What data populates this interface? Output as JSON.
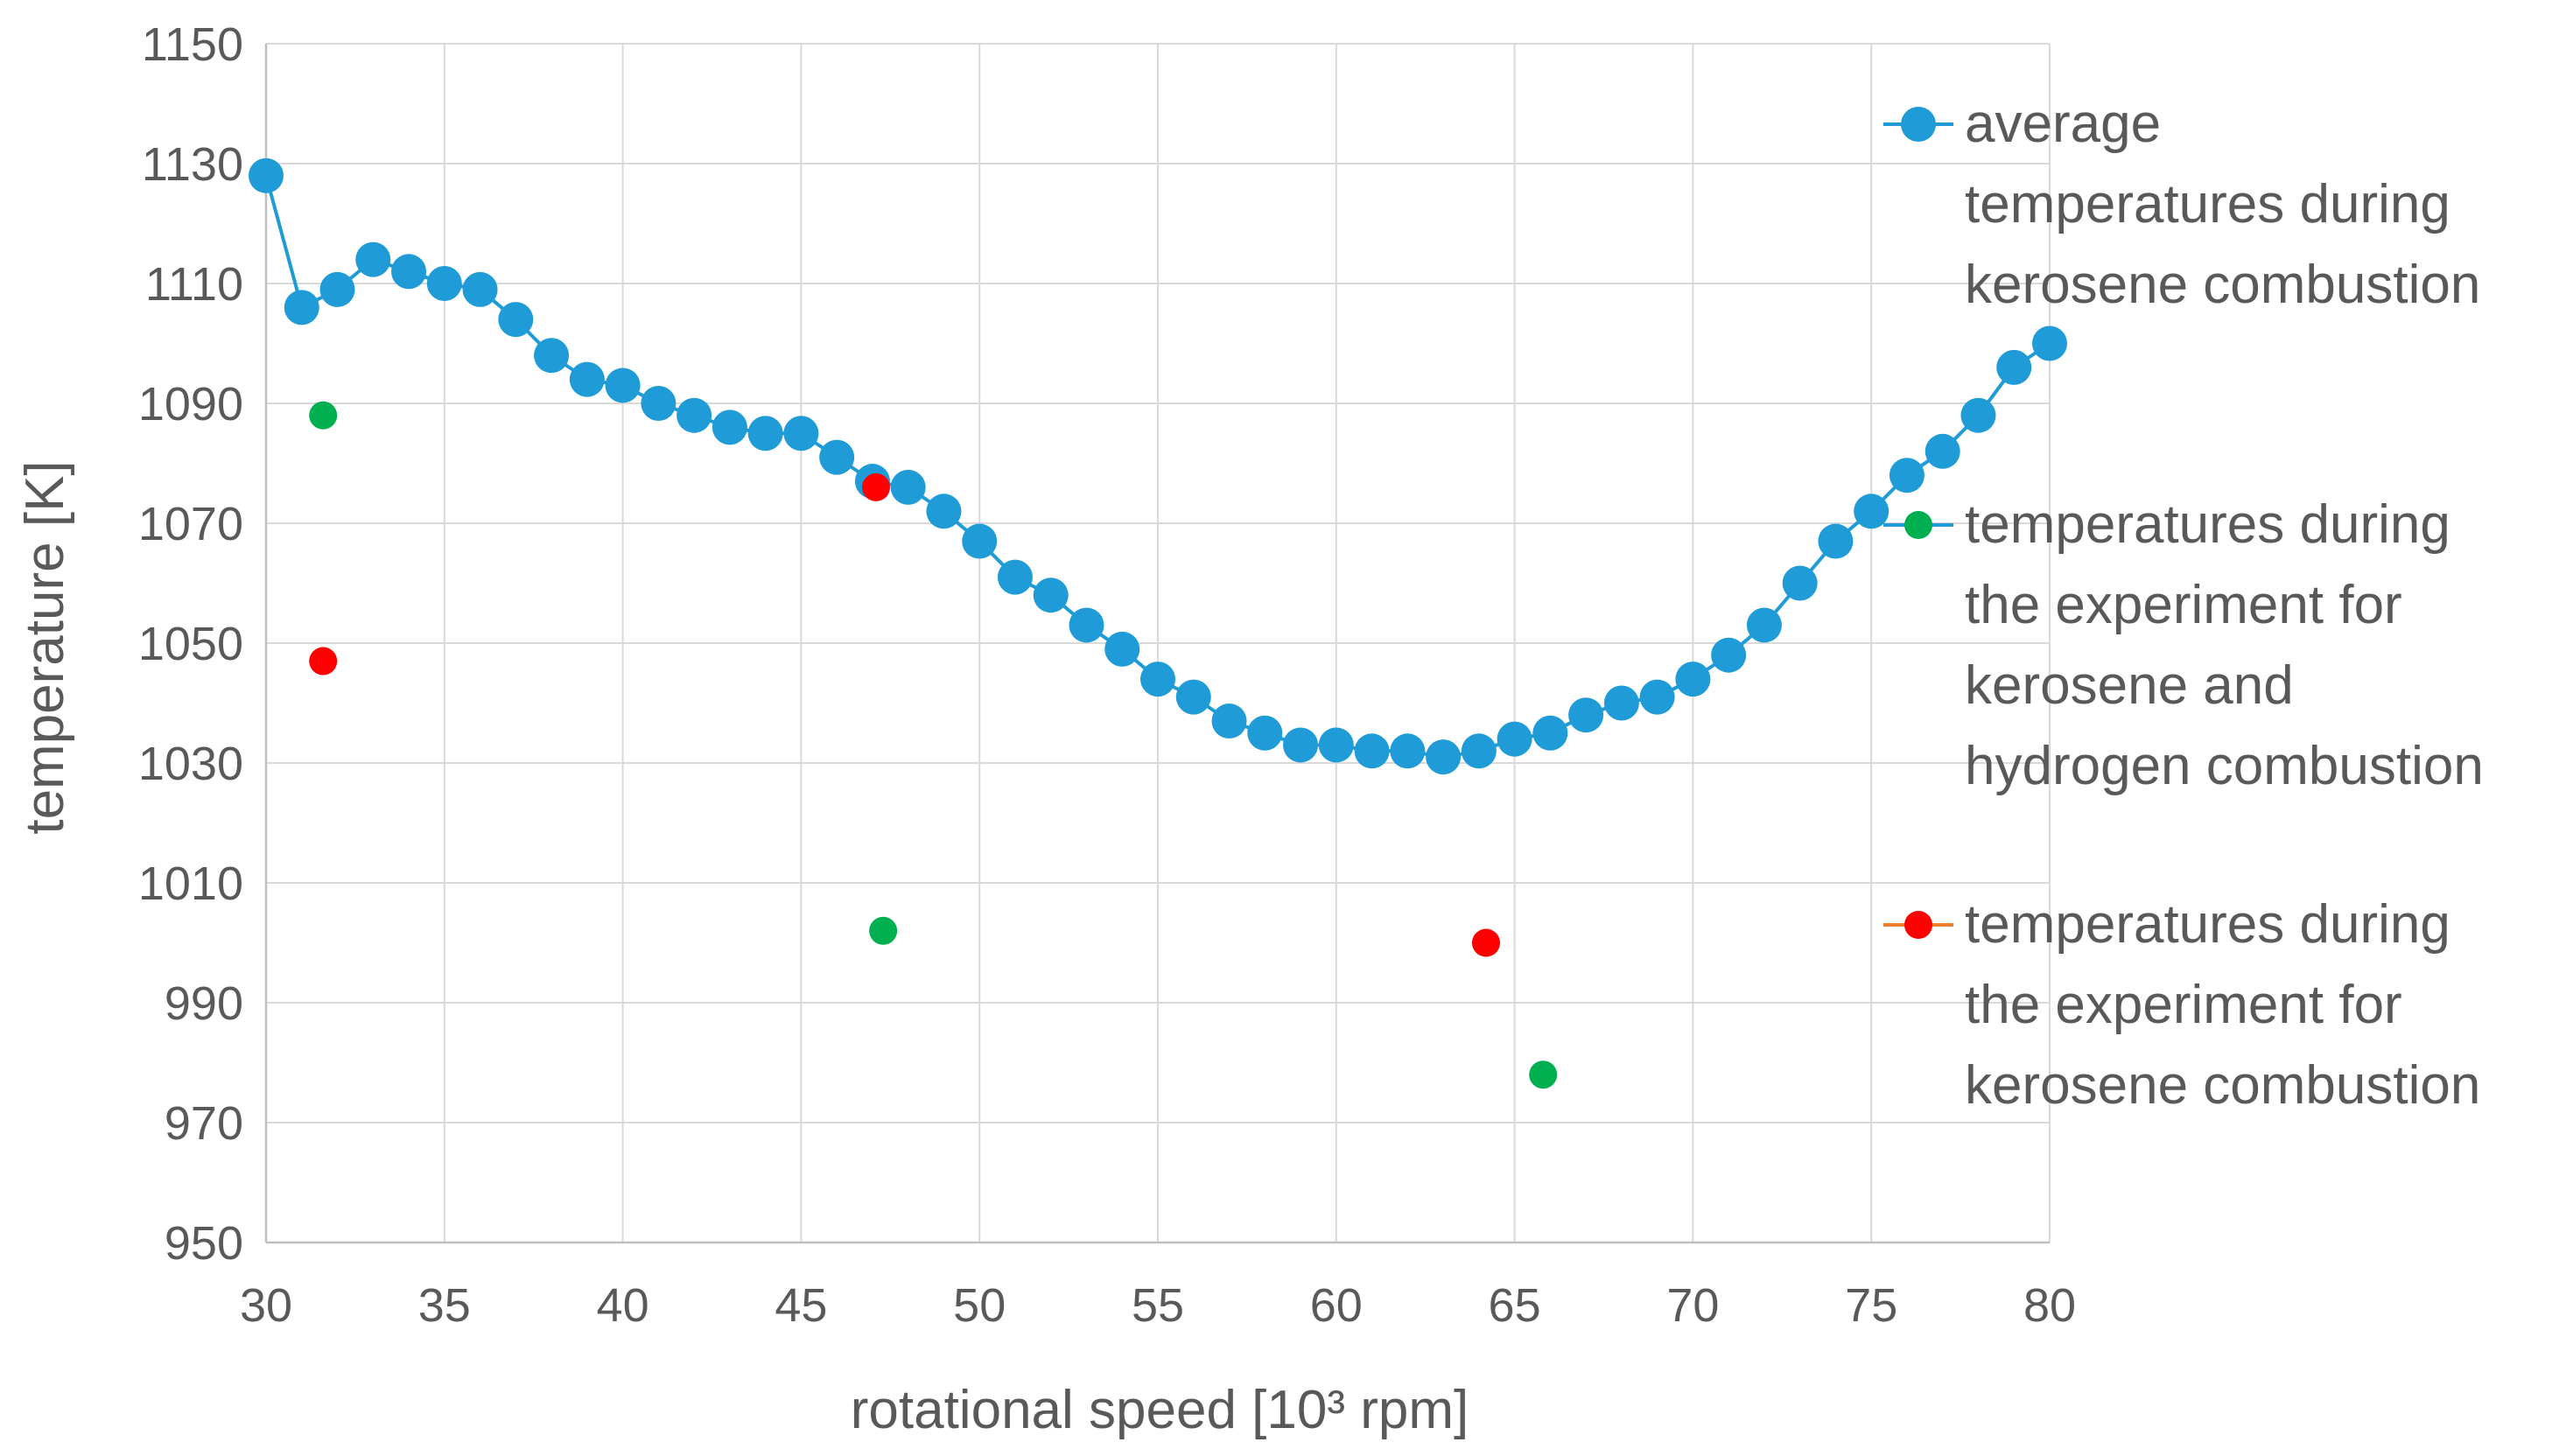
{
  "chart_data": {
    "type": "scatter",
    "title": "",
    "xlabel": "rotational speed [10³ rpm]",
    "ylabel": "temperature [K]",
    "xlim": [
      30,
      80
    ],
    "ylim": [
      950,
      1150
    ],
    "xticks": [
      30,
      35,
      40,
      45,
      50,
      55,
      60,
      65,
      70,
      75,
      80
    ],
    "yticks": [
      950,
      970,
      990,
      1010,
      1030,
      1050,
      1070,
      1090,
      1110,
      1130,
      1150
    ],
    "grid": true,
    "legend_position": "right",
    "series": [
      {
        "name": "average temperatures during kerosene combustion",
        "legend_lines": [
          "average",
          "temperatures during",
          "kerosene combustion"
        ],
        "color": "#1f9bd7",
        "line_color": "#1f9bd7",
        "style": "line-marker",
        "x": [
          30,
          31,
          32,
          33,
          34,
          35,
          36,
          37,
          38,
          39,
          40,
          41,
          42,
          43,
          44,
          45,
          46,
          47,
          48,
          49,
          50,
          51,
          52,
          53,
          54,
          55,
          56,
          57,
          58,
          59,
          60,
          61,
          62,
          63,
          64,
          65,
          66,
          67,
          68,
          69,
          70,
          71,
          72,
          73,
          74,
          75,
          76,
          77,
          78,
          79,
          80
        ],
        "y": [
          1128,
          1106,
          1109,
          1114,
          1112,
          1110,
          1109,
          1104,
          1098,
          1094,
          1093,
          1090,
          1088,
          1086,
          1085,
          1085,
          1081,
          1077,
          1076,
          1072,
          1067,
          1061,
          1058,
          1053,
          1049,
          1044,
          1041,
          1037,
          1035,
          1033,
          1033,
          1032,
          1032,
          1031,
          1032,
          1034,
          1035,
          1038,
          1040,
          1041,
          1044,
          1048,
          1053,
          1060,
          1067,
          1072,
          1078,
          1082,
          1088,
          1096,
          1100
        ]
      },
      {
        "name": "temperatures during the experiment for kerosene and hydrogen combustion",
        "legend_lines": [
          "temperatures during",
          "the experiment for",
          "kerosene and",
          "hydrogen combustion"
        ],
        "color": "#00b050",
        "line_color": "#1f9bd7",
        "style": "marker",
        "x": [
          31.6,
          47.3,
          65.8
        ],
        "y": [
          1088,
          1002,
          978
        ]
      },
      {
        "name": "temperatures during the experiment for kerosene combustion",
        "legend_lines": [
          "temperatures during",
          "the experiment for",
          "kerosene combustion"
        ],
        "color": "#ff0000",
        "line_color": "#ed7d31",
        "style": "marker",
        "x": [
          31.6,
          47.1,
          64.2
        ],
        "y": [
          1047,
          1076,
          1000
        ]
      }
    ]
  }
}
